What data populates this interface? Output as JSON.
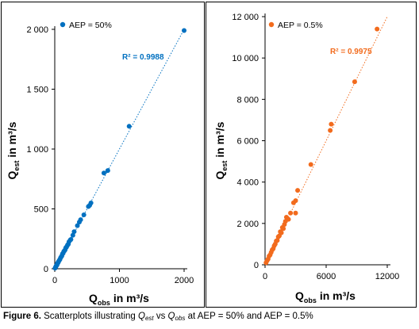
{
  "charts": [
    {
      "type": "scatter",
      "legend": "AEP = 50%",
      "legend_position": "top-left",
      "color": "#0070C0",
      "r2_label": "R² = 0.9988",
      "trendline": true,
      "grid": false,
      "xlim": [
        0,
        2000
      ],
      "ylim": [
        0,
        2000
      ],
      "x_ticks": [
        "0",
        "1000",
        "2000"
      ],
      "y_ticks": [
        "0",
        "500",
        "1 000",
        "1 500",
        "2 000"
      ],
      "x_tick_values": [
        0,
        1000,
        2000
      ],
      "y_tick_values": [
        0,
        500,
        1000,
        1500,
        2000
      ],
      "xlabel_main": "Q",
      "xlabel_sub": "obs",
      "xlabel_rest": " in m³/s",
      "ylabel_main": "Q",
      "ylabel_sub": "est",
      "ylabel_rest": " in m³/s",
      "points": [
        [
          5,
          5
        ],
        [
          10,
          10
        ],
        [
          15,
          15
        ],
        [
          20,
          22
        ],
        [
          25,
          25
        ],
        [
          30,
          30
        ],
        [
          35,
          32
        ],
        [
          40,
          42
        ],
        [
          45,
          48
        ],
        [
          50,
          50
        ],
        [
          55,
          55
        ],
        [
          60,
          62
        ],
        [
          70,
          70
        ],
        [
          80,
          78
        ],
        [
          90,
          92
        ],
        [
          100,
          100
        ],
        [
          110,
          108
        ],
        [
          120,
          125
        ],
        [
          130,
          130
        ],
        [
          140,
          145
        ],
        [
          150,
          150
        ],
        [
          160,
          158
        ],
        [
          170,
          175
        ],
        [
          180,
          180
        ],
        [
          190,
          190
        ],
        [
          200,
          200
        ],
        [
          210,
          205
        ],
        [
          220,
          225
        ],
        [
          240,
          240
        ],
        [
          250,
          245
        ],
        [
          280,
          280
        ],
        [
          300,
          310
        ],
        [
          350,
          360
        ],
        [
          380,
          390
        ],
        [
          400,
          410
        ],
        [
          450,
          450
        ],
        [
          520,
          520
        ],
        [
          540,
          530
        ],
        [
          560,
          550
        ],
        [
          760,
          800
        ],
        [
          820,
          820
        ],
        [
          1150,
          1190
        ],
        [
          2000,
          1990
        ]
      ]
    },
    {
      "type": "scatter",
      "legend": "AEP = 0.5%",
      "legend_position": "top-left",
      "color": "#F26B1D",
      "r2_label": "R² = 0.9975",
      "trendline": true,
      "grid": false,
      "xlim": [
        0,
        12000
      ],
      "ylim": [
        0,
        12000
      ],
      "x_ticks": [
        "0",
        "6000",
        "12000"
      ],
      "y_ticks": [
        "0",
        "2 000",
        "4 000",
        "6 000",
        "8 000",
        "10 000",
        "12 000"
      ],
      "x_tick_values": [
        0,
        6000,
        12000
      ],
      "y_tick_values": [
        0,
        2000,
        4000,
        6000,
        8000,
        10000,
        12000
      ],
      "xlabel_main": "Q",
      "xlabel_sub": "obs",
      "xlabel_rest": " in m³/s",
      "ylabel_main": "Q",
      "ylabel_sub": "est",
      "ylabel_rest": " in m³/s",
      "points": [
        [
          100,
          100
        ],
        [
          200,
          200
        ],
        [
          300,
          280
        ],
        [
          400,
          420
        ],
        [
          500,
          480
        ],
        [
          600,
          600
        ],
        [
          700,
          720
        ],
        [
          800,
          780
        ],
        [
          900,
          920
        ],
        [
          1000,
          1000
        ],
        [
          1100,
          1150
        ],
        [
          1200,
          1180
        ],
        [
          1300,
          1350
        ],
        [
          1400,
          1400
        ],
        [
          1500,
          1600
        ],
        [
          1600,
          1550
        ],
        [
          1700,
          1800
        ],
        [
          1800,
          1750
        ],
        [
          1900,
          1950
        ],
        [
          2000,
          2100
        ],
        [
          2100,
          2300
        ],
        [
          2300,
          2200
        ],
        [
          2500,
          2500
        ],
        [
          2800,
          3000
        ],
        [
          3000,
          3100
        ],
        [
          3200,
          3600
        ],
        [
          3000,
          2500
        ],
        [
          4500,
          4850
        ],
        [
          6400,
          6500
        ],
        [
          6500,
          6800
        ],
        [
          8800,
          8850
        ],
        [
          11000,
          11400
        ]
      ]
    }
  ],
  "caption": {
    "label": "Figure 6.",
    "text_1": " Scatterplots illustrating ",
    "q1": "Q",
    "q1_sub": "est",
    "text_2": " vs ",
    "q2": "Q",
    "q2_sub": "obs",
    "text_3": " at AEP = 50% and AEP = 0.5%"
  }
}
